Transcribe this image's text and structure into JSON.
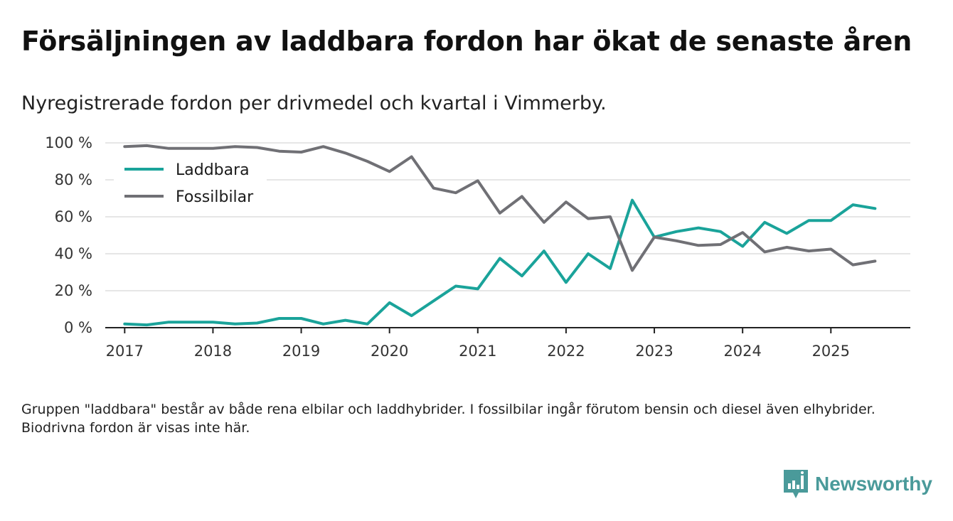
{
  "title": "Försäljningen av laddbara fordon har ökat de senaste åren",
  "subtitle": "Nyregistrerade fordon per drivmedel och kvartal i Vimmerby.",
  "footnote": "Gruppen \"laddbara\" består av både rena elbilar och laddhybrider. I fossilbilar ingår förutom bensin och diesel även elhybrider. Biodrivna fordon är visas inte här.",
  "brand": {
    "name": "Newsworthy",
    "logo_icon": "bar-chart-icon"
  },
  "colors": {
    "laddbara": "#1aa39a",
    "fossil": "#707075",
    "grid": "#dddddd",
    "axis": "#222222",
    "brand": "#4a9a9a"
  },
  "chart_data": {
    "type": "line",
    "title": "Nyregistrerade fordon per drivmedel och kvartal i Vimmerby.",
    "xlabel": "",
    "ylabel": "",
    "x": [
      2017.0,
      2017.25,
      2017.5,
      2017.75,
      2018.0,
      2018.25,
      2018.5,
      2018.75,
      2019.0,
      2019.25,
      2019.5,
      2019.75,
      2020.0,
      2020.25,
      2020.5,
      2020.75,
      2021.0,
      2021.25,
      2021.5,
      2021.75,
      2022.0,
      2022.25,
      2022.5,
      2022.75,
      2023.0,
      2023.25,
      2023.5,
      2023.75,
      2024.0,
      2024.25,
      2024.5,
      2024.75,
      2025.0,
      2025.25,
      2025.5
    ],
    "series": [
      {
        "name": "Laddbara",
        "color": "#1aa39a",
        "values": [
          2,
          1.5,
          3,
          3,
          3,
          2,
          2.5,
          5,
          5,
          2,
          4,
          2,
          13.5,
          6.5,
          14.5,
          22.5,
          21,
          37.5,
          28,
          41.5,
          24.5,
          40,
          32,
          69,
          49,
          52,
          54,
          52,
          44,
          57,
          51,
          58,
          58,
          66.5,
          64.5
        ]
      },
      {
        "name": "Fossilbilar",
        "color": "#707075",
        "values": [
          98,
          98.5,
          97,
          97,
          97,
          98,
          97.5,
          95.5,
          95,
          98,
          94.5,
          90,
          84.5,
          92.5,
          75.5,
          73,
          79.5,
          62,
          71,
          57,
          68,
          59,
          60,
          31,
          49,
          47,
          44.5,
          45,
          51.5,
          41,
          43.5,
          41.5,
          42.5,
          34,
          36
        ]
      }
    ],
    "x_ticks": [
      2017,
      2018,
      2019,
      2020,
      2021,
      2022,
      2023,
      2024,
      2025
    ],
    "x_tick_labels": [
      "2017",
      "2018",
      "2019",
      "2020",
      "2021",
      "2022",
      "2023",
      "2024",
      "2025"
    ],
    "y_ticks": [
      0,
      20,
      40,
      60,
      80,
      100
    ],
    "y_tick_labels": [
      "0 %",
      "20 %",
      "40 %",
      "60 %",
      "80 %",
      "100 %"
    ],
    "xlim": [
      2016.78,
      2025.9
    ],
    "ylim": [
      0,
      100
    ],
    "grid": true,
    "legend": "top-left"
  }
}
